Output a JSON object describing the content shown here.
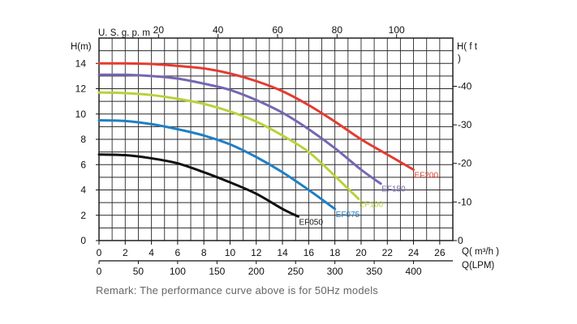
{
  "chart_data": {
    "type": "line",
    "title": "",
    "remark": "Remark: The performance curve above is for 50Hz models",
    "axes": {
      "left": {
        "label": "H(m)",
        "range": [
          0,
          16
        ],
        "ticks": [
          0,
          2,
          4,
          6,
          8,
          10,
          12,
          14
        ]
      },
      "right": {
        "label_line1": "H( f t",
        "label_line2": ")",
        "range": [
          0,
          52.49
        ],
        "ticks": [
          0,
          10,
          20,
          30,
          40
        ]
      },
      "top": {
        "label": "U. S. g. p. m",
        "range": [
          0,
          118.9
        ],
        "ticks": [
          20,
          40,
          60,
          80,
          100
        ]
      },
      "bottom": {
        "label": "Q( m³/h )",
        "range": [
          0,
          27
        ],
        "ticks": [
          0,
          2,
          4,
          6,
          8,
          10,
          12,
          14,
          16,
          18,
          20,
          22,
          24,
          26
        ]
      },
      "bottom2": {
        "label": "Q(LPM)",
        "range": [
          0,
          450
        ],
        "ticks": [
          0,
          50,
          100,
          150,
          200,
          250,
          300,
          350,
          400
        ]
      }
    },
    "grid": true,
    "series": [
      {
        "name": "EF050",
        "color": "#111111",
        "x": [
          0,
          2,
          4,
          6,
          8,
          10,
          12,
          14,
          15.2
        ],
        "y": [
          6.8,
          6.75,
          6.5,
          6.1,
          5.4,
          4.6,
          3.7,
          2.5,
          1.9
        ]
      },
      {
        "name": "EF075",
        "color": "#1f7fc4",
        "x": [
          0,
          2,
          4,
          6,
          8,
          10,
          12,
          14,
          16,
          18
        ],
        "y": [
          9.5,
          9.45,
          9.2,
          8.8,
          8.3,
          7.6,
          6.6,
          5.4,
          4.0,
          2.5
        ]
      },
      {
        "name": "EF100",
        "color": "#b7d33a",
        "x": [
          0,
          2,
          4,
          6,
          8,
          10,
          12,
          14,
          16,
          18,
          19.8
        ],
        "y": [
          11.7,
          11.65,
          11.5,
          11.2,
          10.8,
          10.2,
          9.4,
          8.3,
          7.0,
          5.1,
          3.3
        ]
      },
      {
        "name": "EF150",
        "color": "#7766b3",
        "x": [
          0,
          2,
          4,
          6,
          8,
          10,
          12,
          14,
          16,
          18,
          20,
          21.5
        ],
        "y": [
          13.1,
          13.1,
          13.0,
          12.8,
          12.4,
          11.9,
          11.1,
          10.1,
          8.8,
          7.3,
          5.6,
          4.5
        ]
      },
      {
        "name": "EF200",
        "color": "#e53b30",
        "x": [
          0,
          2,
          4,
          6,
          8,
          10,
          12,
          14,
          16,
          18,
          20,
          22,
          24
        ],
        "y": [
          14.0,
          14.0,
          13.95,
          13.8,
          13.6,
          13.2,
          12.6,
          11.8,
          10.7,
          9.4,
          8.0,
          6.8,
          5.6
        ]
      }
    ]
  }
}
